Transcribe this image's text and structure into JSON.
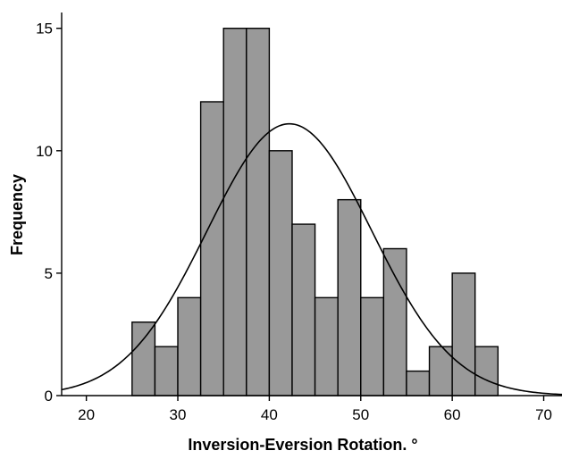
{
  "chart_data": {
    "type": "bar",
    "title": "",
    "xlabel": "Inversion-Eversion Rotation. °",
    "ylabel": "Frequency",
    "bin_width": 2.5,
    "bins": [
      {
        "start": 25.0,
        "end": 27.5,
        "count": 3
      },
      {
        "start": 27.5,
        "end": 30.0,
        "count": 2
      },
      {
        "start": 30.0,
        "end": 32.5,
        "count": 4
      },
      {
        "start": 32.5,
        "end": 35.0,
        "count": 12
      },
      {
        "start": 35.0,
        "end": 37.5,
        "count": 15
      },
      {
        "start": 37.5,
        "end": 40.0,
        "count": 15
      },
      {
        "start": 40.0,
        "end": 42.5,
        "count": 10
      },
      {
        "start": 42.5,
        "end": 45.0,
        "count": 7
      },
      {
        "start": 45.0,
        "end": 47.5,
        "count": 4
      },
      {
        "start": 47.5,
        "end": 50.0,
        "count": 8
      },
      {
        "start": 50.0,
        "end": 52.5,
        "count": 4
      },
      {
        "start": 52.5,
        "end": 55.0,
        "count": 6
      },
      {
        "start": 55.0,
        "end": 57.5,
        "count": 1
      },
      {
        "start": 57.5,
        "end": 60.0,
        "count": 2
      },
      {
        "start": 60.0,
        "end": 62.5,
        "count": 5
      },
      {
        "start": 62.5,
        "end": 65.0,
        "count": 2
      }
    ],
    "normal_curve": {
      "mean": 42.2,
      "sd": 9.0,
      "peak": 11.1
    },
    "xlim": [
      17.3,
      72.0
    ],
    "ylim": [
      0,
      15.5
    ],
    "x_ticks": [
      20,
      30,
      40,
      50,
      60,
      70
    ],
    "y_ticks": [
      0,
      5,
      10,
      15
    ],
    "grid": false,
    "colors": {
      "bar_fill": "#999999",
      "bar_stroke": "#000000",
      "curve": "#000000"
    }
  }
}
